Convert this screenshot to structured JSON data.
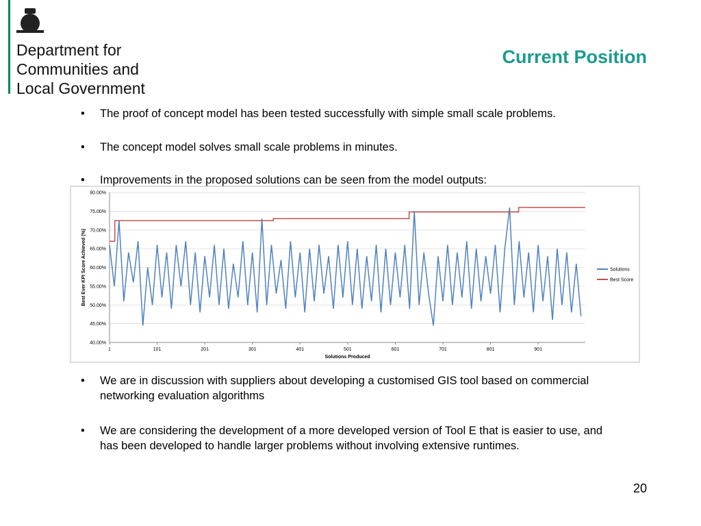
{
  "header": {
    "org_lines": [
      "Department for",
      "Communities and",
      "Local Government"
    ],
    "title": "Current Position"
  },
  "bullets": [
    "The proof of concept model has been tested successfully with simple small scale problems.",
    "The concept model solves small scale problems in minutes.",
    "Improvements in the proposed solutions can be seen from the model outputs:",
    "We are in discussion with suppliers about developing a customised GIS tool based on commercial networking evaluation algorithms",
    "We are considering the development of a more developed version of Tool E that is easier to use, and has been developed to handle larger problems without involving extensive runtimes."
  ],
  "page_number": "20",
  "chart_data": {
    "type": "line",
    "x_label": "Solutions Produced",
    "y_label": "Best Ever KPI Score Achieved (%)",
    "xlim": [
      1,
      1000
    ],
    "xticks": [
      1,
      101,
      201,
      301,
      401,
      501,
      601,
      701,
      801,
      901
    ],
    "ylim": [
      40,
      80
    ],
    "yticks": [
      {
        "value": 40,
        "label": "40.00%"
      },
      {
        "value": 45,
        "label": "45.00%"
      },
      {
        "value": 50,
        "label": "50.00%"
      },
      {
        "value": 55,
        "label": "55.00%"
      },
      {
        "value": 60,
        "label": "60.00%"
      },
      {
        "value": 65,
        "label": "65.00%"
      },
      {
        "value": 70,
        "label": "70.00%"
      },
      {
        "value": 75,
        "label": "75.00%"
      },
      {
        "value": 80,
        "label": "80.00%"
      }
    ],
    "grid": true,
    "legend": "right",
    "series": [
      {
        "name": "Solutions",
        "color": "#4f81bd",
        "x": [
          1,
          11,
          21,
          31,
          41,
          51,
          61,
          71,
          81,
          91,
          101,
          111,
          121,
          131,
          141,
          151,
          161,
          171,
          181,
          191,
          201,
          211,
          221,
          231,
          241,
          251,
          261,
          271,
          281,
          291,
          301,
          311,
          321,
          331,
          341,
          351,
          361,
          371,
          381,
          391,
          401,
          411,
          421,
          431,
          441,
          451,
          461,
          471,
          481,
          491,
          501,
          511,
          521,
          531,
          541,
          551,
          561,
          571,
          581,
          591,
          601,
          611,
          621,
          631,
          641,
          651,
          661,
          671,
          681,
          691,
          701,
          711,
          721,
          731,
          741,
          751,
          761,
          771,
          781,
          791,
          801,
          811,
          821,
          831,
          841,
          851,
          861,
          871,
          881,
          891,
          901,
          911,
          921,
          931,
          941,
          951,
          961,
          971,
          981,
          991
        ],
        "values": [
          66,
          55,
          72.5,
          51,
          64,
          56,
          67,
          44.5,
          60,
          50,
          66,
          52,
          64,
          49,
          66,
          55,
          67,
          50,
          64,
          48,
          63,
          52,
          66,
          50,
          65,
          49,
          61,
          52,
          67,
          50,
          64,
          48,
          73,
          50,
          66,
          53,
          62,
          49,
          67,
          52,
          64,
          48,
          65,
          51,
          66,
          53,
          63,
          49,
          66,
          52,
          67,
          50,
          65,
          49,
          63,
          51,
          66,
          48,
          65,
          50,
          64,
          52,
          66,
          49,
          75,
          50,
          64,
          53,
          44.5,
          63,
          51,
          66,
          50,
          64,
          52,
          67,
          49,
          65,
          51,
          63,
          53,
          66,
          48,
          65,
          76,
          50,
          67,
          52,
          64,
          48,
          66,
          51,
          63,
          46,
          65,
          50,
          64,
          48,
          61,
          47
        ]
      },
      {
        "name": "Best Score",
        "color": "#c0504d",
        "x": [
          1,
          12,
          12,
          345,
          345,
          630,
          630,
          860,
          860,
          1000
        ],
        "values": [
          67,
          67,
          72.5,
          72.5,
          73,
          73,
          74.8,
          74.8,
          76,
          76
        ]
      }
    ]
  }
}
